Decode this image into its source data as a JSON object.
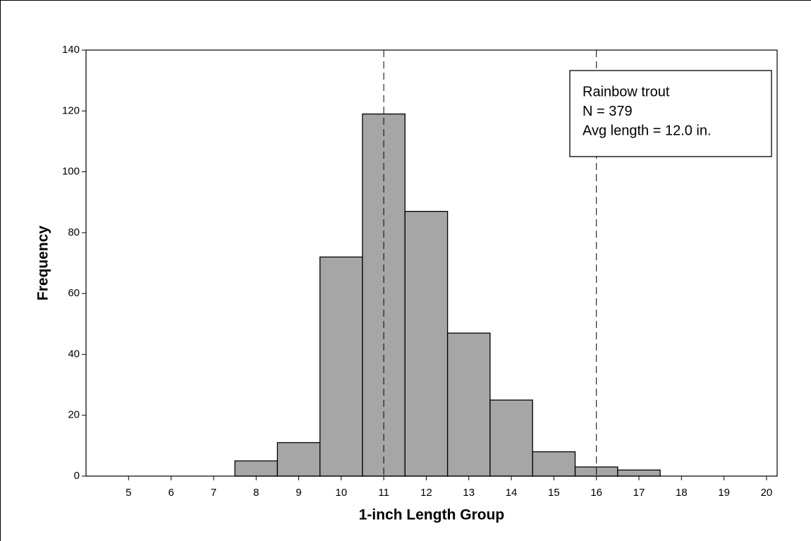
{
  "chart_data": {
    "type": "histogram",
    "x_label": "1-inch Length Group",
    "y_label": "Frequency",
    "bins": [
      4.5,
      5.5,
      6.5,
      7.5,
      8.5,
      9.5,
      10.5,
      11.5,
      12.5,
      13.5,
      14.5,
      15.5,
      16.5,
      17.5,
      18.5,
      19.5
    ],
    "counts": [
      0,
      0,
      0,
      5,
      11,
      72,
      119,
      87,
      47,
      25,
      8,
      3,
      2,
      0,
      0
    ],
    "color": "#a6a6a6",
    "xlim": [
      4,
      20.25
    ],
    "ylim": [
      0,
      140
    ],
    "xticks": [
      5,
      6,
      7,
      8,
      9,
      10,
      11,
      12,
      13,
      14,
      15,
      16,
      17,
      18,
      19,
      20
    ],
    "yticks": [
      0,
      20,
      40,
      60,
      80,
      100,
      120,
      140
    ],
    "reference_lines": [
      11,
      16
    ],
    "annotation": [
      "Rainbow trout",
      "N = 379",
      "Avg length = 12.0 in."
    ]
  }
}
